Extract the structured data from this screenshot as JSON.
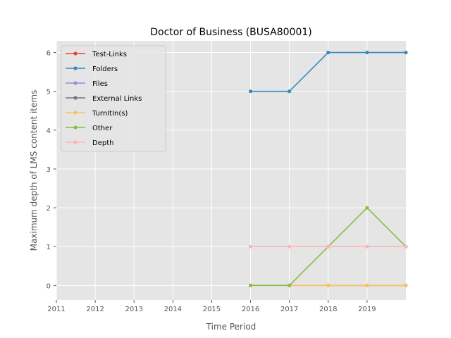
{
  "chart_data": {
    "type": "line",
    "title": "Doctor of Business (BUSA80001)",
    "xlabel": "Time Period",
    "ylabel": "Maximum depth of LMS content items",
    "x_ticks": [
      "2011",
      "2012",
      "2013",
      "2014",
      "2015",
      "2016",
      "2017",
      "2018",
      "2019"
    ],
    "y_ticks": [
      "0",
      "1",
      "2",
      "3",
      "4",
      "5",
      "6"
    ],
    "xlim": [
      2011,
      2020
    ],
    "ylim": [
      -0.375,
      6.3
    ],
    "grid": true,
    "legend_position": "top-left",
    "background_color": "#e5e5e5",
    "series": [
      {
        "name": "Test-Links",
        "color": "#e24a33",
        "x": [],
        "y": []
      },
      {
        "name": "Folders",
        "color": "#348abd",
        "x": [
          2016,
          2017,
          2018,
          2019,
          2020
        ],
        "y": [
          5,
          5,
          6,
          6,
          6
        ]
      },
      {
        "name": "Files",
        "color": "#988ed5",
        "x": [],
        "y": []
      },
      {
        "name": "External Links",
        "color": "#777777",
        "x": [
          2018,
          2019,
          2020
        ],
        "y": [
          0,
          0,
          0
        ]
      },
      {
        "name": "TurnItIn(s)",
        "color": "#fbc15e",
        "x": [
          2017,
          2018,
          2019,
          2020
        ],
        "y": [
          0,
          0,
          0,
          0
        ]
      },
      {
        "name": "Other",
        "color": "#8eba42",
        "x": [
          2016,
          2017,
          2018,
          2019,
          2020
        ],
        "y": [
          0,
          0,
          1,
          2,
          1
        ]
      },
      {
        "name": "Depth",
        "color": "#ffb5b8",
        "x": [
          2016,
          2017,
          2018,
          2019,
          2020
        ],
        "y": [
          1,
          1,
          1,
          1,
          1
        ]
      }
    ]
  }
}
